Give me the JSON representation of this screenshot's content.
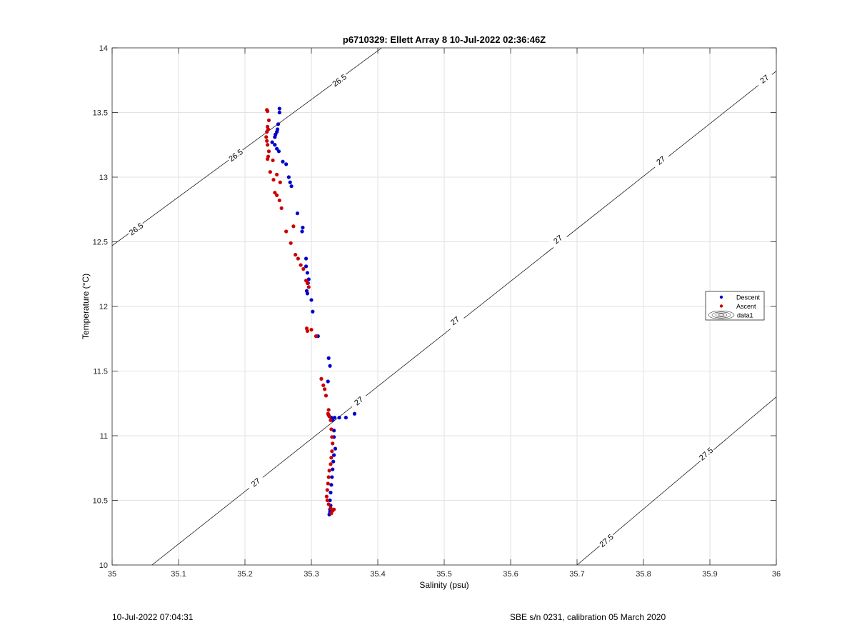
{
  "chart_data": {
    "type": "scatter",
    "title": "p6710329: Ellett Array 8 10-Jul-2022 02:36:46Z",
    "xlabel": "Salinity (psu)",
    "ylabel": "Temperature (°C)",
    "xlim": [
      35,
      36
    ],
    "ylim": [
      10,
      14
    ],
    "xticks": [
      35,
      35.1,
      35.2,
      35.3,
      35.4,
      35.5,
      35.6,
      35.7,
      35.8,
      35.9,
      36
    ],
    "xtick_labels": [
      "35",
      "35.1",
      "35.2",
      "35.3",
      "35.4",
      "35.5",
      "35.6",
      "35.7",
      "35.8",
      "35.9",
      "36"
    ],
    "yticks": [
      10,
      10.5,
      11,
      11.5,
      12,
      12.5,
      13,
      13.5,
      14
    ],
    "ytick_labels": [
      "10",
      "10.5",
      "11",
      "11.5",
      "12",
      "12.5",
      "13",
      "13.5",
      "14"
    ],
    "grid": true,
    "legend_position": "right",
    "series": [
      {
        "name": "Descent",
        "color": "#0000cc",
        "points": [
          [
            35.252,
            13.53
          ],
          [
            35.252,
            13.5
          ],
          [
            35.25,
            13.41
          ],
          [
            35.249,
            13.37
          ],
          [
            35.248,
            13.35
          ],
          [
            35.246,
            13.33
          ],
          [
            35.245,
            13.31
          ],
          [
            35.241,
            13.27
          ],
          [
            35.245,
            13.25
          ],
          [
            35.248,
            13.22
          ],
          [
            35.251,
            13.2
          ],
          [
            35.257,
            13.12
          ],
          [
            35.262,
            13.1
          ],
          [
            35.266,
            13.0
          ],
          [
            35.268,
            12.96
          ],
          [
            35.27,
            12.93
          ],
          [
            35.279,
            12.72
          ],
          [
            35.287,
            12.61
          ],
          [
            35.286,
            12.58
          ],
          [
            35.292,
            12.37
          ],
          [
            35.292,
            12.31
          ],
          [
            35.294,
            12.26
          ],
          [
            35.296,
            12.21
          ],
          [
            35.295,
            12.18
          ],
          [
            35.293,
            12.12
          ],
          [
            35.294,
            12.1
          ],
          [
            35.3,
            12.05
          ],
          [
            35.302,
            11.96
          ],
          [
            35.31,
            11.77
          ],
          [
            35.326,
            11.6
          ],
          [
            35.328,
            11.54
          ],
          [
            35.325,
            11.42
          ],
          [
            35.326,
            11.16
          ],
          [
            35.33,
            11.14
          ],
          [
            35.335,
            11.14
          ],
          [
            35.342,
            11.14
          ],
          [
            35.352,
            11.14
          ],
          [
            35.365,
            11.17
          ],
          [
            35.332,
            11.12
          ],
          [
            35.334,
            11.04
          ],
          [
            35.334,
            10.99
          ],
          [
            35.336,
            10.9
          ],
          [
            35.334,
            10.85
          ],
          [
            35.333,
            10.8
          ],
          [
            35.332,
            10.74
          ],
          [
            35.331,
            10.68
          ],
          [
            35.33,
            10.62
          ],
          [
            35.329,
            10.56
          ],
          [
            35.328,
            10.5
          ],
          [
            35.329,
            10.46
          ],
          [
            35.328,
            10.43
          ],
          [
            35.328,
            10.41
          ],
          [
            35.327,
            10.39
          ]
        ]
      },
      {
        "name": "Ascent",
        "color": "#cc0000",
        "points": [
          [
            35.233,
            13.52
          ],
          [
            35.234,
            13.51
          ],
          [
            35.236,
            13.44
          ],
          [
            35.234,
            13.39
          ],
          [
            35.235,
            13.37
          ],
          [
            35.233,
            13.35
          ],
          [
            35.232,
            13.31
          ],
          [
            35.233,
            13.28
          ],
          [
            35.234,
            13.25
          ],
          [
            35.236,
            13.2
          ],
          [
            35.235,
            13.16
          ],
          [
            35.234,
            13.14
          ],
          [
            35.242,
            13.13
          ],
          [
            35.238,
            13.04
          ],
          [
            35.248,
            13.02
          ],
          [
            35.243,
            12.98
          ],
          [
            35.253,
            12.96
          ],
          [
            35.245,
            12.88
          ],
          [
            35.248,
            12.86
          ],
          [
            35.252,
            12.82
          ],
          [
            35.255,
            12.76
          ],
          [
            35.262,
            12.58
          ],
          [
            35.273,
            12.62
          ],
          [
            35.269,
            12.49
          ],
          [
            35.276,
            12.4
          ],
          [
            35.28,
            12.37
          ],
          [
            35.284,
            12.32
          ],
          [
            35.288,
            12.29
          ],
          [
            35.292,
            12.2
          ],
          [
            35.294,
            12.18
          ],
          [
            35.296,
            12.15
          ],
          [
            35.293,
            11.83
          ],
          [
            35.294,
            11.81
          ],
          [
            35.3,
            11.82
          ],
          [
            35.307,
            11.77
          ],
          [
            35.315,
            11.44
          ],
          [
            35.318,
            11.39
          ],
          [
            35.32,
            11.36
          ],
          [
            35.322,
            11.31
          ],
          [
            35.326,
            11.2
          ],
          [
            35.325,
            11.17
          ],
          [
            35.327,
            11.15
          ],
          [
            35.329,
            11.12
          ],
          [
            35.33,
            11.05
          ],
          [
            35.331,
            10.99
          ],
          [
            35.332,
            10.94
          ],
          [
            35.331,
            10.88
          ],
          [
            35.33,
            10.83
          ],
          [
            35.329,
            10.78
          ],
          [
            35.327,
            10.73
          ],
          [
            35.326,
            10.68
          ],
          [
            35.325,
            10.63
          ],
          [
            35.324,
            10.58
          ],
          [
            35.323,
            10.53
          ],
          [
            35.324,
            10.5
          ],
          [
            35.326,
            10.47
          ],
          [
            35.329,
            10.44
          ],
          [
            35.332,
            10.42
          ],
          [
            35.334,
            10.43
          ],
          [
            35.33,
            10.4
          ]
        ]
      }
    ],
    "density_contours": [
      {
        "label": "26.5",
        "points": [
          [
            35.0,
            12.47
          ],
          [
            35.406,
            14.0
          ]
        ],
        "label_positions": [
          [
            35.036,
            12.6
          ],
          [
            35.186,
            13.17
          ],
          [
            35.342,
            13.75
          ]
        ]
      },
      {
        "label": "27",
        "points": [
          [
            35.06,
            10.0
          ],
          [
            36.0,
            13.82
          ]
        ],
        "label_positions": [
          [
            35.216,
            10.64
          ],
          [
            35.371,
            11.27
          ],
          [
            35.516,
            11.89
          ],
          [
            35.671,
            12.52
          ],
          [
            35.826,
            13.13
          ],
          [
            35.982,
            13.76
          ]
        ]
      },
      {
        "label": "27.5",
        "points": [
          [
            35.7,
            10.0
          ],
          [
            36.0,
            11.3
          ]
        ],
        "label_positions": [
          [
            35.744,
            10.19
          ],
          [
            35.894,
            10.86
          ]
        ]
      }
    ],
    "legend": [
      {
        "label": "Descent",
        "color": "#0000cc",
        "marker": "dot"
      },
      {
        "label": "Ascent",
        "color": "#cc0000",
        "marker": "dot"
      },
      {
        "label": "data1",
        "color": "#000000",
        "marker": "contour"
      }
    ]
  },
  "footer": {
    "left": "10-Jul-2022 07:04:31",
    "right": "SBE s/n 0231, calibration 05 March 2020"
  }
}
